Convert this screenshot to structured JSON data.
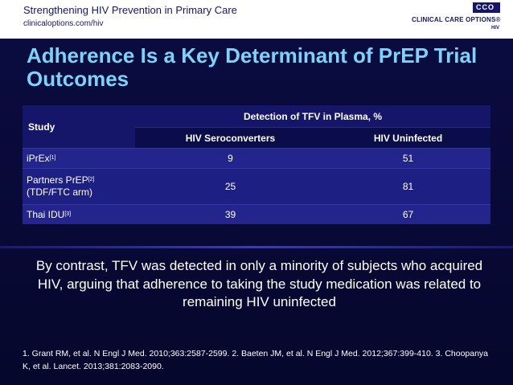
{
  "header": {
    "title": "Strengthening HIV Prevention in Primary Care",
    "url": "clinicaloptions.com/hiv",
    "logo_badge": "CCO",
    "logo_brand": "CLINICAL CARE OPTIONS®",
    "logo_sub": "HIV"
  },
  "slide_title": "Adherence Is a Key Determinant of PrEP Trial Outcomes",
  "table": {
    "study_header": "Study",
    "group_header": "Detection of TFV in Plasma, %",
    "col1": "HIV Seroconverters",
    "col2": "HIV Uninfected",
    "rows": [
      {
        "study": "iPrEx",
        "ref": "[1]",
        "extra": "",
        "sero": "9",
        "uninf": "51"
      },
      {
        "study": "Partners PrEP",
        "ref": "[2]",
        "extra": "(TDF/FTC arm)",
        "sero": "25",
        "uninf": "81"
      },
      {
        "study": "Thai IDU",
        "ref": "[3]",
        "extra": "",
        "sero": "39",
        "uninf": "67"
      }
    ]
  },
  "body_text": "By contrast, TFV was detected in only a minority of subjects who acquired HIV, arguing that adherence to taking the study medication was related to remaining HIV uninfected",
  "references": "1. Grant RM, et al. N Engl J Med. 2010;363:2587-2599. 2. Baeten JM, et al. N Engl J Med. 2012;367:399-410. 3. Choopanya K, et al. Lancet. 2013;381:2083-2090."
}
